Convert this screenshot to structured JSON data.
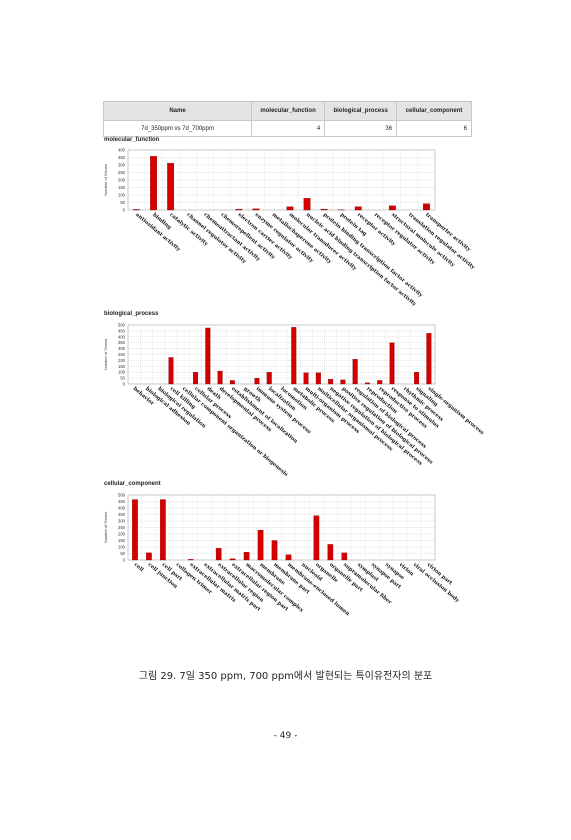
{
  "summary_table": {
    "headers": [
      "Name",
      "molecular_function",
      "biological_process",
      "cellular_component"
    ],
    "row": [
      "7d_350ppm vs 7d_700ppm",
      "4",
      "36",
      "6"
    ]
  },
  "caption": "그림 29. 7일 350 ppm, 700 ppm에서 발현되는 특이유전자의 분포",
  "page_number": "- 49 -",
  "colors": {
    "bar": "#d40000",
    "grid": "#bdbdbd"
  },
  "chart_data": [
    {
      "type": "bar",
      "title": "molecular_function",
      "ylabel": "Number of Genes",
      "ylim": [
        0,
        400
      ],
      "yticks": [
        0,
        50,
        100,
        150,
        200,
        250,
        300,
        350,
        400
      ],
      "categories": [
        "antioxidant activity",
        "binding",
        "catalytic activity",
        "channel regulator activity",
        "chemoattractant activity",
        "chemorepellent activity",
        "electron carrier activity",
        "enzyme regulator activity",
        "metallochaperone activity",
        "molecular transducer activity",
        "nucleic acid binding transcription factor activity",
        "protein binding transcription factor activity",
        "protein tag",
        "receptor activity",
        "receptor regulator activity",
        "structural molecule activity",
        "translation regulator activity",
        "transporter activity"
      ],
      "values": [
        4,
        358,
        312,
        0,
        0,
        0,
        6,
        8,
        0,
        22,
        78,
        6,
        2,
        22,
        0,
        28,
        0,
        42
      ]
    },
    {
      "type": "bar",
      "title": "biological_process",
      "ylabel": "Number of Genes",
      "ylim": [
        0,
        500
      ],
      "yticks": [
        0,
        50,
        100,
        150,
        200,
        250,
        300,
        350,
        400,
        450,
        500
      ],
      "categories": [
        "behavior",
        "biological adhesion",
        "biological regulation",
        "cell killing",
        "cellular component organization or biogenesis",
        "cellular process",
        "death",
        "developmental process",
        "establishment of localization",
        "growth",
        "immune system process",
        "localization",
        "locomotion",
        "metabolic process",
        "multi-organism process",
        "multicellular organismal process",
        "negative regulation of biological process",
        "positive regulation of biological process",
        "regulation of biological process",
        "reproduction",
        "reproductive process",
        "response to stimulus",
        "rhythmic process",
        "signaling",
        "single-organism process"
      ],
      "values": [
        0,
        0,
        0,
        225,
        0,
        100,
        475,
        110,
        30,
        0,
        50,
        100,
        0,
        480,
        95,
        95,
        40,
        35,
        210,
        10,
        30,
        350,
        0,
        100,
        430
      ]
    },
    {
      "type": "bar",
      "title": "cellular_component",
      "ylabel": "Number of Genes",
      "ylim": [
        0,
        500
      ],
      "yticks": [
        0,
        50,
        100,
        150,
        200,
        250,
        300,
        350,
        400,
        450,
        500
      ],
      "categories": [
        "cell",
        "cell junction",
        "cell part",
        "collagen trimer",
        "extracellular matrix",
        "extracellular matrix part",
        "extracellular region",
        "extracellular region part",
        "macromolecular complex",
        "membrane",
        "membrane part",
        "membrane-enclosed lumen",
        "nucleoid",
        "organelle",
        "organelle part",
        "supramolecular fiber",
        "symplast",
        "synapse part",
        "synapse",
        "virion",
        "viral occlusion body",
        "virion part"
      ],
      "values": [
        465,
        55,
        465,
        0,
        5,
        0,
        90,
        10,
        60,
        230,
        150,
        40,
        0,
        340,
        120,
        55,
        0,
        0,
        0,
        0,
        0,
        0
      ]
    }
  ]
}
